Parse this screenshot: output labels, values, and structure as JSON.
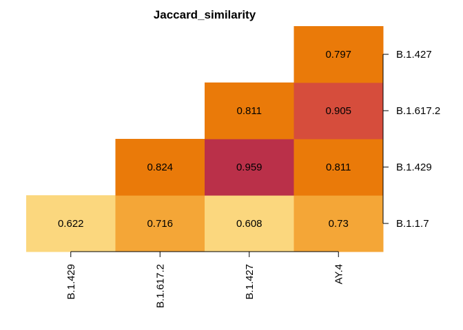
{
  "chart_data": {
    "type": "heatmap",
    "title": "Jaccard_similarity",
    "x_categories": [
      "B.1.429",
      "B.1.617.2",
      "B.1.427",
      "AY.4"
    ],
    "y_categories": [
      "B.1.1.7",
      "B.1.429",
      "B.1.617.2",
      "B.1.427"
    ],
    "cells": [
      {
        "x": "B.1.429",
        "y": "B.1.1.7",
        "value": 0.622,
        "label": "0.622",
        "color": "#FBD77E"
      },
      {
        "x": "B.1.617.2",
        "y": "B.1.1.7",
        "value": 0.716,
        "label": "0.716",
        "color": "#F4A637"
      },
      {
        "x": "B.1.427",
        "y": "B.1.1.7",
        "value": 0.608,
        "label": "0.608",
        "color": "#FBD77E"
      },
      {
        "x": "AY.4",
        "y": "B.1.1.7",
        "value": 0.73,
        "label": "0.73",
        "color": "#F4A637"
      },
      {
        "x": "B.1.617.2",
        "y": "B.1.429",
        "value": 0.824,
        "label": "0.824",
        "color": "#EA7A09"
      },
      {
        "x": "B.1.427",
        "y": "B.1.429",
        "value": 0.959,
        "label": "0.959",
        "color": "#BA3049"
      },
      {
        "x": "AY.4",
        "y": "B.1.429",
        "value": 0.811,
        "label": "0.811",
        "color": "#EA7A09"
      },
      {
        "x": "B.1.427",
        "y": "B.1.617.2",
        "value": 0.811,
        "label": "0.811",
        "color": "#EA7A09"
      },
      {
        "x": "AY.4",
        "y": "B.1.617.2",
        "value": 0.905,
        "label": "0.905",
        "color": "#D64D3C"
      },
      {
        "x": "AY.4",
        "y": "B.1.427",
        "value": 0.797,
        "label": "0.797",
        "color": "#EA7A09"
      }
    ]
  }
}
